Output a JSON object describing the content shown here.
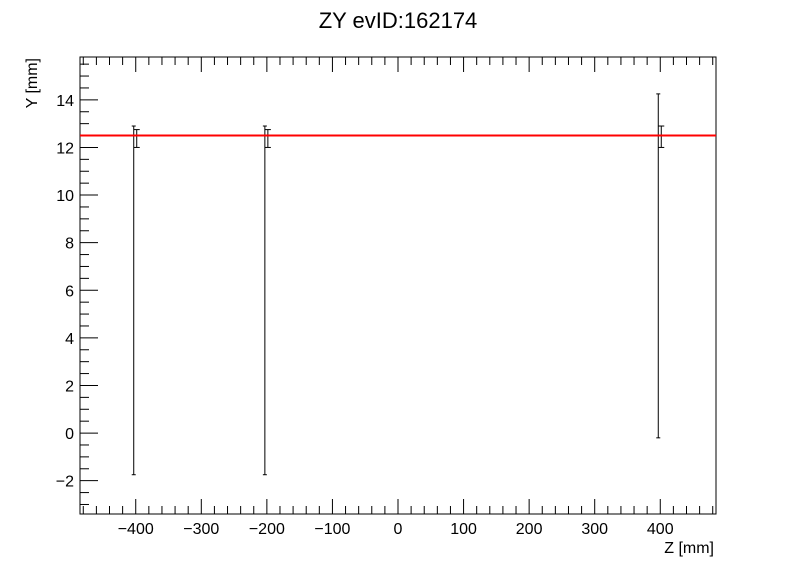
{
  "chart_data": {
    "type": "scatter",
    "title": "ZY evID:162174",
    "xlabel": "Z [mm]",
    "ylabel": "Y [mm]",
    "xlim": [
      -485,
      485
    ],
    "ylim": [
      -3.4,
      15.8
    ],
    "x_ticks": [
      -400,
      -300,
      -200,
      -100,
      0,
      100,
      200,
      300,
      400
    ],
    "x_tick_labels": [
      "−400",
      "−300",
      "−200",
      "−100",
      "0",
      "100",
      "200",
      "300",
      "400"
    ],
    "y_ticks": [
      -2,
      0,
      2,
      4,
      6,
      8,
      10,
      12,
      14
    ],
    "y_tick_labels": [
      "−2",
      "0",
      "2",
      "4",
      "6",
      "8",
      "10",
      "12",
      "14"
    ],
    "grid": false,
    "series": [
      {
        "points": [
          {
            "x": -400,
            "y": 12.5,
            "err_low": 14.25,
            "err_high": 0.4,
            "inner_low": 0.5,
            "inner_high": 0.25
          },
          {
            "x": -200,
            "y": 12.5,
            "err_low": 14.25,
            "err_high": 0.4,
            "inner_low": 0.5,
            "inner_high": 0.25
          },
          {
            "x": 400,
            "y": 12.5,
            "err_low": 12.7,
            "err_high": 1.75,
            "inner_low": 0.5,
            "inner_high": 0.4
          }
        ],
        "color": "#000000"
      }
    ],
    "fit_line": {
      "y": 12.5,
      "color": "#ff0000"
    }
  }
}
